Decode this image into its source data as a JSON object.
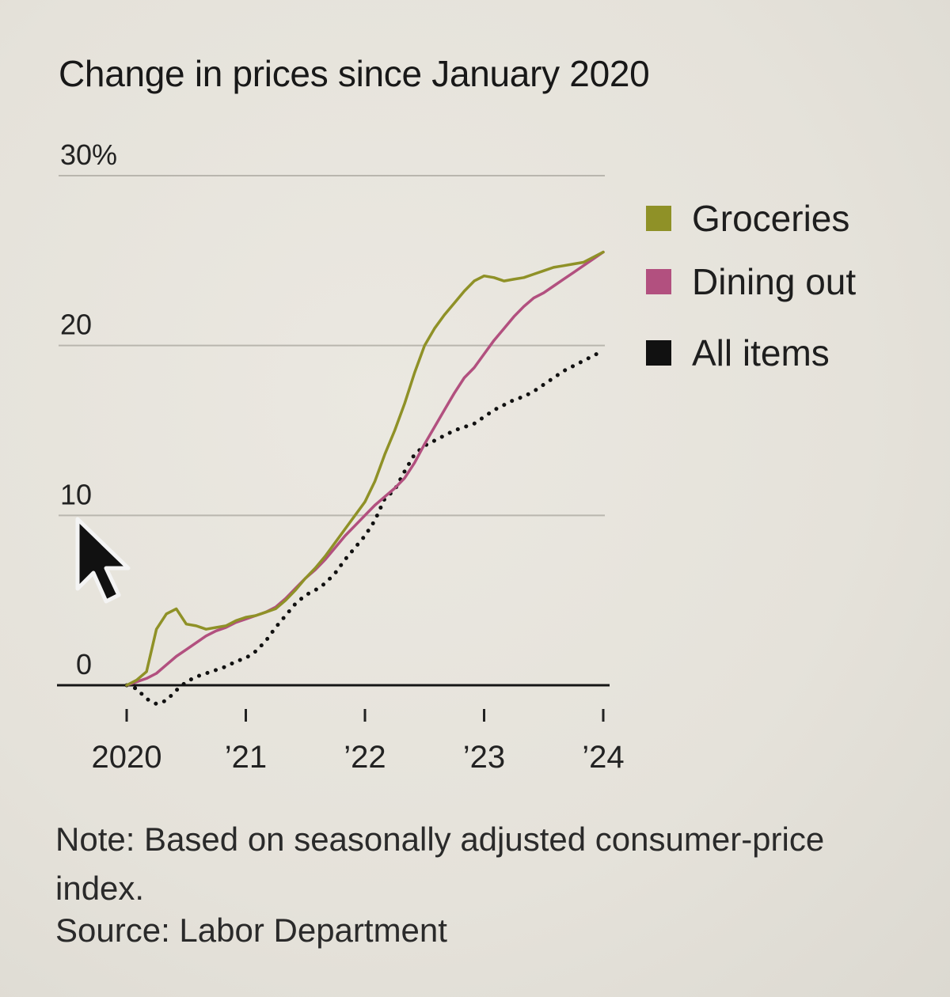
{
  "title": "Change in prices since January 2020",
  "note": "Note: Based on seasonally adjusted consumer-price index.",
  "source": "Source: Labor Department",
  "cursor_icon": "arrow-pointer-icon",
  "chart_data": {
    "type": "line",
    "title": "Change in prices since January 2020",
    "xlabel": "",
    "ylabel": "",
    "ylim": [
      0,
      30
    ],
    "xlim": [
      "2020-01",
      "2024-01"
    ],
    "yticks": [
      "30%",
      "20",
      "10",
      "0"
    ],
    "ytick_values": [
      30,
      20,
      10,
      0
    ],
    "xticks": [
      "2020",
      "’21",
      "’22",
      "’23",
      "’24"
    ],
    "xtick_values": [
      "2020-01",
      "2021-01",
      "2022-01",
      "2023-01",
      "2024-01"
    ],
    "grid": true,
    "legend_position": "right",
    "series": [
      {
        "name": "Groceries",
        "color": "#8f9127",
        "style": "solid",
        "points": [
          [
            "2020-01",
            0
          ],
          [
            "2020-02",
            0.3
          ],
          [
            "2020-03",
            0.8
          ],
          [
            "2020-04",
            3.3
          ],
          [
            "2020-05",
            4.2
          ],
          [
            "2020-06",
            4.5
          ],
          [
            "2020-07",
            3.6
          ],
          [
            "2020-08",
            3.5
          ],
          [
            "2020-09",
            3.3
          ],
          [
            "2020-10",
            3.4
          ],
          [
            "2020-11",
            3.5
          ],
          [
            "2020-12",
            3.8
          ],
          [
            "2021-01",
            4.0
          ],
          [
            "2021-02",
            4.1
          ],
          [
            "2021-03",
            4.3
          ],
          [
            "2021-04",
            4.5
          ],
          [
            "2021-05",
            5.0
          ],
          [
            "2021-06",
            5.6
          ],
          [
            "2021-07",
            6.3
          ],
          [
            "2021-08",
            6.9
          ],
          [
            "2021-09",
            7.6
          ],
          [
            "2021-10",
            8.4
          ],
          [
            "2021-11",
            9.2
          ],
          [
            "2021-12",
            10.0
          ],
          [
            "2022-01",
            10.8
          ],
          [
            "2022-02",
            12.0
          ],
          [
            "2022-03",
            13.6
          ],
          [
            "2022-04",
            15.0
          ],
          [
            "2022-05",
            16.6
          ],
          [
            "2022-06",
            18.4
          ],
          [
            "2022-07",
            20.0
          ],
          [
            "2022-08",
            21.0
          ],
          [
            "2022-09",
            21.8
          ],
          [
            "2022-10",
            22.5
          ],
          [
            "2022-11",
            23.2
          ],
          [
            "2022-12",
            23.8
          ],
          [
            "2023-01",
            24.1
          ],
          [
            "2023-02",
            24.0
          ],
          [
            "2023-03",
            23.8
          ],
          [
            "2023-04",
            23.9
          ],
          [
            "2023-05",
            24.0
          ],
          [
            "2023-06",
            24.2
          ],
          [
            "2023-07",
            24.4
          ],
          [
            "2023-08",
            24.6
          ],
          [
            "2023-09",
            24.7
          ],
          [
            "2023-10",
            24.8
          ],
          [
            "2023-11",
            24.9
          ],
          [
            "2023-12",
            25.2
          ],
          [
            "2024-01",
            25.5
          ]
        ]
      },
      {
        "name": "Dining out",
        "color": "#b2507f",
        "style": "solid",
        "points": [
          [
            "2020-01",
            0
          ],
          [
            "2020-02",
            0.2
          ],
          [
            "2020-03",
            0.4
          ],
          [
            "2020-04",
            0.7
          ],
          [
            "2020-05",
            1.2
          ],
          [
            "2020-06",
            1.7
          ],
          [
            "2020-07",
            2.1
          ],
          [
            "2020-08",
            2.5
          ],
          [
            "2020-09",
            2.9
          ],
          [
            "2020-10",
            3.2
          ],
          [
            "2020-11",
            3.4
          ],
          [
            "2020-12",
            3.7
          ],
          [
            "2021-01",
            3.9
          ],
          [
            "2021-02",
            4.1
          ],
          [
            "2021-03",
            4.3
          ],
          [
            "2021-04",
            4.6
          ],
          [
            "2021-05",
            5.1
          ],
          [
            "2021-06",
            5.7
          ],
          [
            "2021-07",
            6.3
          ],
          [
            "2021-08",
            6.8
          ],
          [
            "2021-09",
            7.4
          ],
          [
            "2021-10",
            8.1
          ],
          [
            "2021-11",
            8.8
          ],
          [
            "2021-12",
            9.4
          ],
          [
            "2022-01",
            10.0
          ],
          [
            "2022-02",
            10.6
          ],
          [
            "2022-03",
            11.1
          ],
          [
            "2022-04",
            11.6
          ],
          [
            "2022-05",
            12.2
          ],
          [
            "2022-06",
            13.1
          ],
          [
            "2022-07",
            14.2
          ],
          [
            "2022-08",
            15.2
          ],
          [
            "2022-09",
            16.2
          ],
          [
            "2022-10",
            17.2
          ],
          [
            "2022-11",
            18.1
          ],
          [
            "2022-12",
            18.7
          ],
          [
            "2023-01",
            19.5
          ],
          [
            "2023-02",
            20.3
          ],
          [
            "2023-03",
            21.0
          ],
          [
            "2023-04",
            21.7
          ],
          [
            "2023-05",
            22.3
          ],
          [
            "2023-06",
            22.8
          ],
          [
            "2023-07",
            23.1
          ],
          [
            "2023-08",
            23.5
          ],
          [
            "2023-09",
            23.9
          ],
          [
            "2023-10",
            24.3
          ],
          [
            "2023-11",
            24.7
          ],
          [
            "2023-12",
            25.1
          ],
          [
            "2024-01",
            25.5
          ]
        ]
      },
      {
        "name": "All items",
        "color": "#111111",
        "style": "dotted",
        "points": [
          [
            "2020-01",
            0
          ],
          [
            "2020-02",
            -0.2
          ],
          [
            "2020-03",
            -0.8
          ],
          [
            "2020-04",
            -1.1
          ],
          [
            "2020-05",
            -0.9
          ],
          [
            "2020-06",
            -0.3
          ],
          [
            "2020-07",
            0.2
          ],
          [
            "2020-08",
            0.5
          ],
          [
            "2020-09",
            0.7
          ],
          [
            "2020-10",
            0.9
          ],
          [
            "2020-11",
            1.1
          ],
          [
            "2020-12",
            1.4
          ],
          [
            "2021-01",
            1.6
          ],
          [
            "2021-02",
            2.0
          ],
          [
            "2021-03",
            2.6
          ],
          [
            "2021-04",
            3.4
          ],
          [
            "2021-05",
            4.1
          ],
          [
            "2021-06",
            4.8
          ],
          [
            "2021-07",
            5.3
          ],
          [
            "2021-08",
            5.6
          ],
          [
            "2021-09",
            6.0
          ],
          [
            "2021-10",
            6.6
          ],
          [
            "2021-11",
            7.4
          ],
          [
            "2021-12",
            8.1
          ],
          [
            "2022-01",
            8.8
          ],
          [
            "2022-02",
            9.7
          ],
          [
            "2022-03",
            11.0
          ],
          [
            "2022-04",
            11.5
          ],
          [
            "2022-05",
            12.6
          ],
          [
            "2022-06",
            13.6
          ],
          [
            "2022-07",
            14.1
          ],
          [
            "2022-08",
            14.4
          ],
          [
            "2022-09",
            14.7
          ],
          [
            "2022-10",
            15.0
          ],
          [
            "2022-11",
            15.2
          ],
          [
            "2022-12",
            15.4
          ],
          [
            "2023-01",
            15.8
          ],
          [
            "2023-02",
            16.2
          ],
          [
            "2023-03",
            16.5
          ],
          [
            "2023-04",
            16.8
          ],
          [
            "2023-05",
            17.0
          ],
          [
            "2023-06",
            17.3
          ],
          [
            "2023-07",
            17.7
          ],
          [
            "2023-08",
            18.1
          ],
          [
            "2023-09",
            18.5
          ],
          [
            "2023-10",
            18.8
          ],
          [
            "2023-11",
            19.1
          ],
          [
            "2023-12",
            19.4
          ],
          [
            "2024-01",
            19.7
          ]
        ]
      }
    ]
  }
}
